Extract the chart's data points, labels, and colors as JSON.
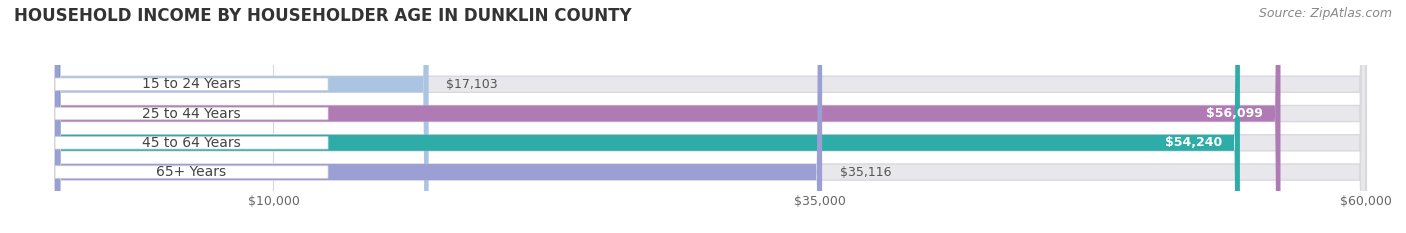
{
  "title": "HOUSEHOLD INCOME BY HOUSEHOLDER AGE IN DUNKLIN COUNTY",
  "source": "Source: ZipAtlas.com",
  "categories": [
    "15 to 24 Years",
    "25 to 44 Years",
    "45 to 64 Years",
    "65+ Years"
  ],
  "values": [
    17103,
    56099,
    54240,
    35116
  ],
  "bar_colors": [
    "#aac4e2",
    "#b07ab5",
    "#2eada8",
    "#9b9fd4"
  ],
  "track_color": "#e8e8ec",
  "track_border_color": "#d8d8de",
  "value_labels": [
    "$17,103",
    "$56,099",
    "$54,240",
    "$35,116"
  ],
  "xlim_data": [
    0,
    60000
  ],
  "x_max_display": 60000,
  "xticks": [
    10000,
    35000,
    60000
  ],
  "xticklabels": [
    "$10,000",
    "$35,000",
    "$60,000"
  ],
  "title_fontsize": 12,
  "source_fontsize": 9,
  "label_fontsize": 10,
  "value_fontsize": 9,
  "tick_fontsize": 9,
  "bar_height": 0.55,
  "background_color": "#ffffff",
  "label_bg_color": "#ffffff",
  "label_text_color": "#444444",
  "grid_color": "#d8d8d8",
  "title_color": "#333333"
}
